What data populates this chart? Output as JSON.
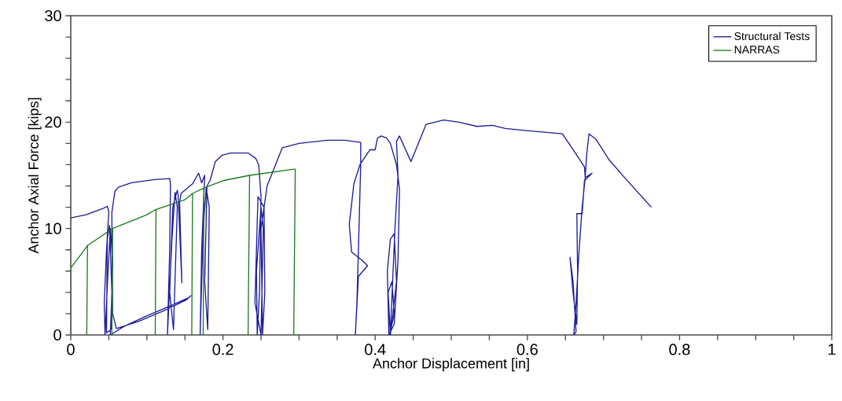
{
  "chart_data": {
    "type": "line",
    "xlabel": "Anchor Displacement [in]",
    "ylabel": "Anchor Axial Force [kips]",
    "xlim": [
      0,
      1
    ],
    "ylim": [
      0,
      30
    ],
    "xticks": [
      0,
      {
        "value": 0.05,
        "label": null
      },
      {
        "value": 0.1,
        "label": null
      },
      {
        "value": 0.15,
        "label": null
      },
      0.2,
      {
        "value": 0.25,
        "label": null
      },
      {
        "value": 0.3,
        "label": null
      },
      {
        "value": 0.35,
        "label": null
      },
      0.4,
      {
        "value": 0.45,
        "label": null
      },
      {
        "value": 0.5,
        "label": null
      },
      {
        "value": 0.55,
        "label": null
      },
      0.6,
      {
        "value": 0.65,
        "label": null
      },
      {
        "value": 0.7,
        "label": null
      },
      {
        "value": 0.75,
        "label": null
      },
      0.8,
      {
        "value": 0.85,
        "label": null
      },
      {
        "value": 0.9,
        "label": null
      },
      {
        "value": 0.95,
        "label": null
      },
      1
    ],
    "yticks": [
      0,
      {
        "value": 2,
        "label": null
      },
      {
        "value": 4,
        "label": null
      },
      {
        "value": 6,
        "label": null
      },
      {
        "value": 8,
        "label": null
      },
      10,
      {
        "value": 12,
        "label": null
      },
      {
        "value": 14,
        "label": null
      },
      {
        "value": 16,
        "label": null
      },
      {
        "value": 18,
        "label": null
      },
      20,
      {
        "value": 22,
        "label": null
      },
      {
        "value": 24,
        "label": null
      },
      {
        "value": 26,
        "label": null
      },
      {
        "value": 28,
        "label": null
      },
      30
    ],
    "legend": "top right",
    "grid": false,
    "marker": "none",
    "line_style": "solid",
    "series": [
      {
        "name": "Structural Tests",
        "color": "#1c1c9a",
        "x": [
          0,
          0.02,
          0.043,
          0.048,
          0.05,
          0.047,
          0.044,
          0.045,
          0.049,
          0.052,
          0.055,
          0.053,
          0.047,
          0.048,
          0.051,
          0.054,
          0.052,
          0.07,
          0.1,
          0.13,
          0.155,
          0.158,
          0.152,
          0.12,
          0.09,
          0.06,
          0.055,
          0.054,
          0.058,
          0.063,
          0.08,
          0.11,
          0.13,
          0.131,
          0.13,
          0.127,
          0.133,
          0.137,
          0.14,
          0.135,
          0.13,
          0.134,
          0.14,
          0.141,
          0.146,
          0.143,
          0.145,
          0.16,
          0.168,
          0.172,
          0.176,
          0.172,
          0.17,
          0.174,
          0.178,
          0.182,
          0.18,
          0.176,
          0.179,
          0.183,
          0.19,
          0.199,
          0.21,
          0.233,
          0.243,
          0.247,
          0.25,
          0.248,
          0.245,
          0.244,
          0.25,
          0.253,
          0.25,
          0.242,
          0.246,
          0.254,
          0.255,
          0.252,
          0.25,
          0.258,
          0.278,
          0.3,
          0.337,
          0.36,
          0.381,
          0.381,
          0.378,
          0.376,
          0.374,
          0.378,
          0.39,
          0.383,
          0.369,
          0.366,
          0.372,
          0.38,
          0.393,
          0.4,
          0.403,
          0.408,
          0.415,
          0.42,
          0.428,
          0.432,
          0.43,
          0.425,
          0.418,
          0.416,
          0.42,
          0.425,
          0.428,
          0.42,
          0.417,
          0.422,
          0.425,
          0.42,
          0.426,
          0.43,
          0.428,
          0.432,
          0.447,
          0.467,
          0.49,
          0.51,
          0.534,
          0.554,
          0.571,
          0.599,
          0.646,
          0.662,
          0.675,
          0.676,
          0.672,
          0.668,
          0.664,
          0.661,
          0.664,
          0.66,
          0.656,
          0.66,
          0.665,
          0.666,
          0.665,
          0.672,
          0.675,
          0.685,
          0.676,
          0.678,
          0.681,
          0.69,
          0.707,
          0.73,
          0.763
        ],
        "values": [
          11,
          11.3,
          11.9,
          12.1,
          11.6,
          8,
          3,
          0,
          6,
          10,
          7,
          0.5,
          0.2,
          9,
          10.3,
          4,
          0,
          0.8,
          1.8,
          2.7,
          3.5,
          3.7,
          3.3,
          2.2,
          1.3,
          0.6,
          2,
          11.5,
          13.5,
          13.9,
          14.3,
          14.6,
          14.7,
          14.2,
          8,
          0,
          9,
          13.4,
          12,
          0.5,
          4,
          12,
          13.6,
          13.2,
          4.9,
          12.5,
          13.3,
          14.2,
          15.2,
          14.3,
          15,
          8,
          0,
          10,
          13.8,
          12,
          0.5,
          5,
          14,
          14.5,
          16.3,
          16.9,
          17.1,
          17.1,
          16.6,
          16,
          13,
          4,
          0,
          6,
          12,
          10,
          0,
          3,
          13,
          12,
          4,
          0,
          10,
          14,
          17.6,
          18,
          18.3,
          18.3,
          18.1,
          16,
          8,
          3,
          0,
          5.5,
          6.5,
          7,
          7.8,
          10.4,
          14.2,
          16,
          17.4,
          17.4,
          18.5,
          18.7,
          18.5,
          18,
          16,
          13.7,
          7,
          1,
          0,
          6,
          9,
          9.5,
          5,
          0,
          4,
          5,
          2,
          0.3,
          10,
          15,
          18.2,
          18.7,
          16.3,
          19.8,
          20.2,
          20,
          19.6,
          19.7,
          19.4,
          19.2,
          18.9,
          17.2,
          15.8,
          14.8,
          12,
          8,
          3,
          0,
          0.3,
          5,
          7.3,
          4,
          1,
          6,
          11.4,
          11.4,
          14.5,
          15.2,
          14.8,
          17,
          18.9,
          18.4,
          16.5,
          14.6,
          12
        ]
      },
      {
        "name": "NARRAS",
        "color": "#1e7a1e",
        "x": [
          0,
          0,
          0.022,
          0.021,
          0.022,
          0.055,
          0.054,
          0.055,
          0.1,
          0.112,
          0.111,
          0.112,
          0.15,
          0.16,
          0.159,
          0.16,
          0.175,
          0.174,
          0.175,
          0.2,
          0.235,
          0.233,
          0.235,
          0.295,
          0.293
        ],
        "values": [
          0,
          6.3,
          8.4,
          0,
          8.4,
          10,
          0,
          10,
          11.3,
          11.8,
          0,
          11.8,
          12.7,
          13.3,
          0,
          13.3,
          13.8,
          0,
          13.8,
          14.5,
          15,
          0,
          15,
          15.6,
          0
        ]
      }
    ]
  }
}
